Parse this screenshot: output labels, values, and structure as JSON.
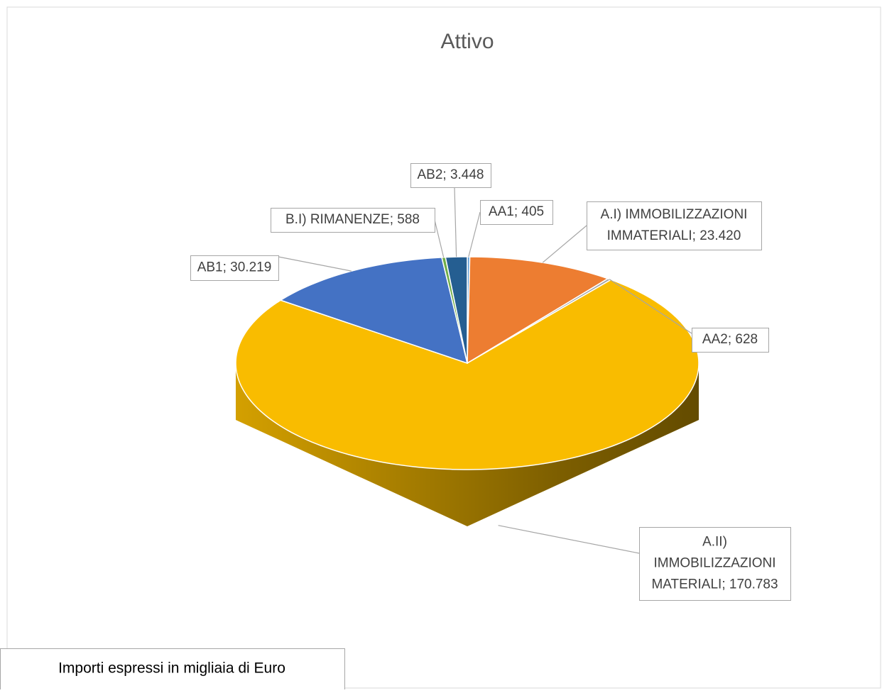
{
  "chart_data": {
    "type": "pie",
    "title": "Attivo",
    "values": [
      405,
      23420,
      628,
      170783,
      30219,
      588,
      3448
    ],
    "value_labels": [
      [
        "AA1; 405"
      ],
      [
        "A.I) IMMOBILIZZAZIONI",
        "IMMATERIALI; 23.420"
      ],
      [
        "AA2; 628"
      ],
      [
        "A.II)",
        "IMMOBILIZZAZIONI",
        "MATERIALI; 170.783"
      ],
      [
        "AB1; 30.219"
      ],
      [
        "B.I)  RIMANENZE; 588"
      ],
      [
        "AB2; 3.448"
      ]
    ],
    "colors": [
      "#5b9bd5",
      "#ed7d31",
      "#a5a5a5",
      "#f9bc00",
      "#4472c4",
      "#70ad47",
      "#255e91"
    ],
    "note": "Importi espressi in migliaia di Euro"
  }
}
